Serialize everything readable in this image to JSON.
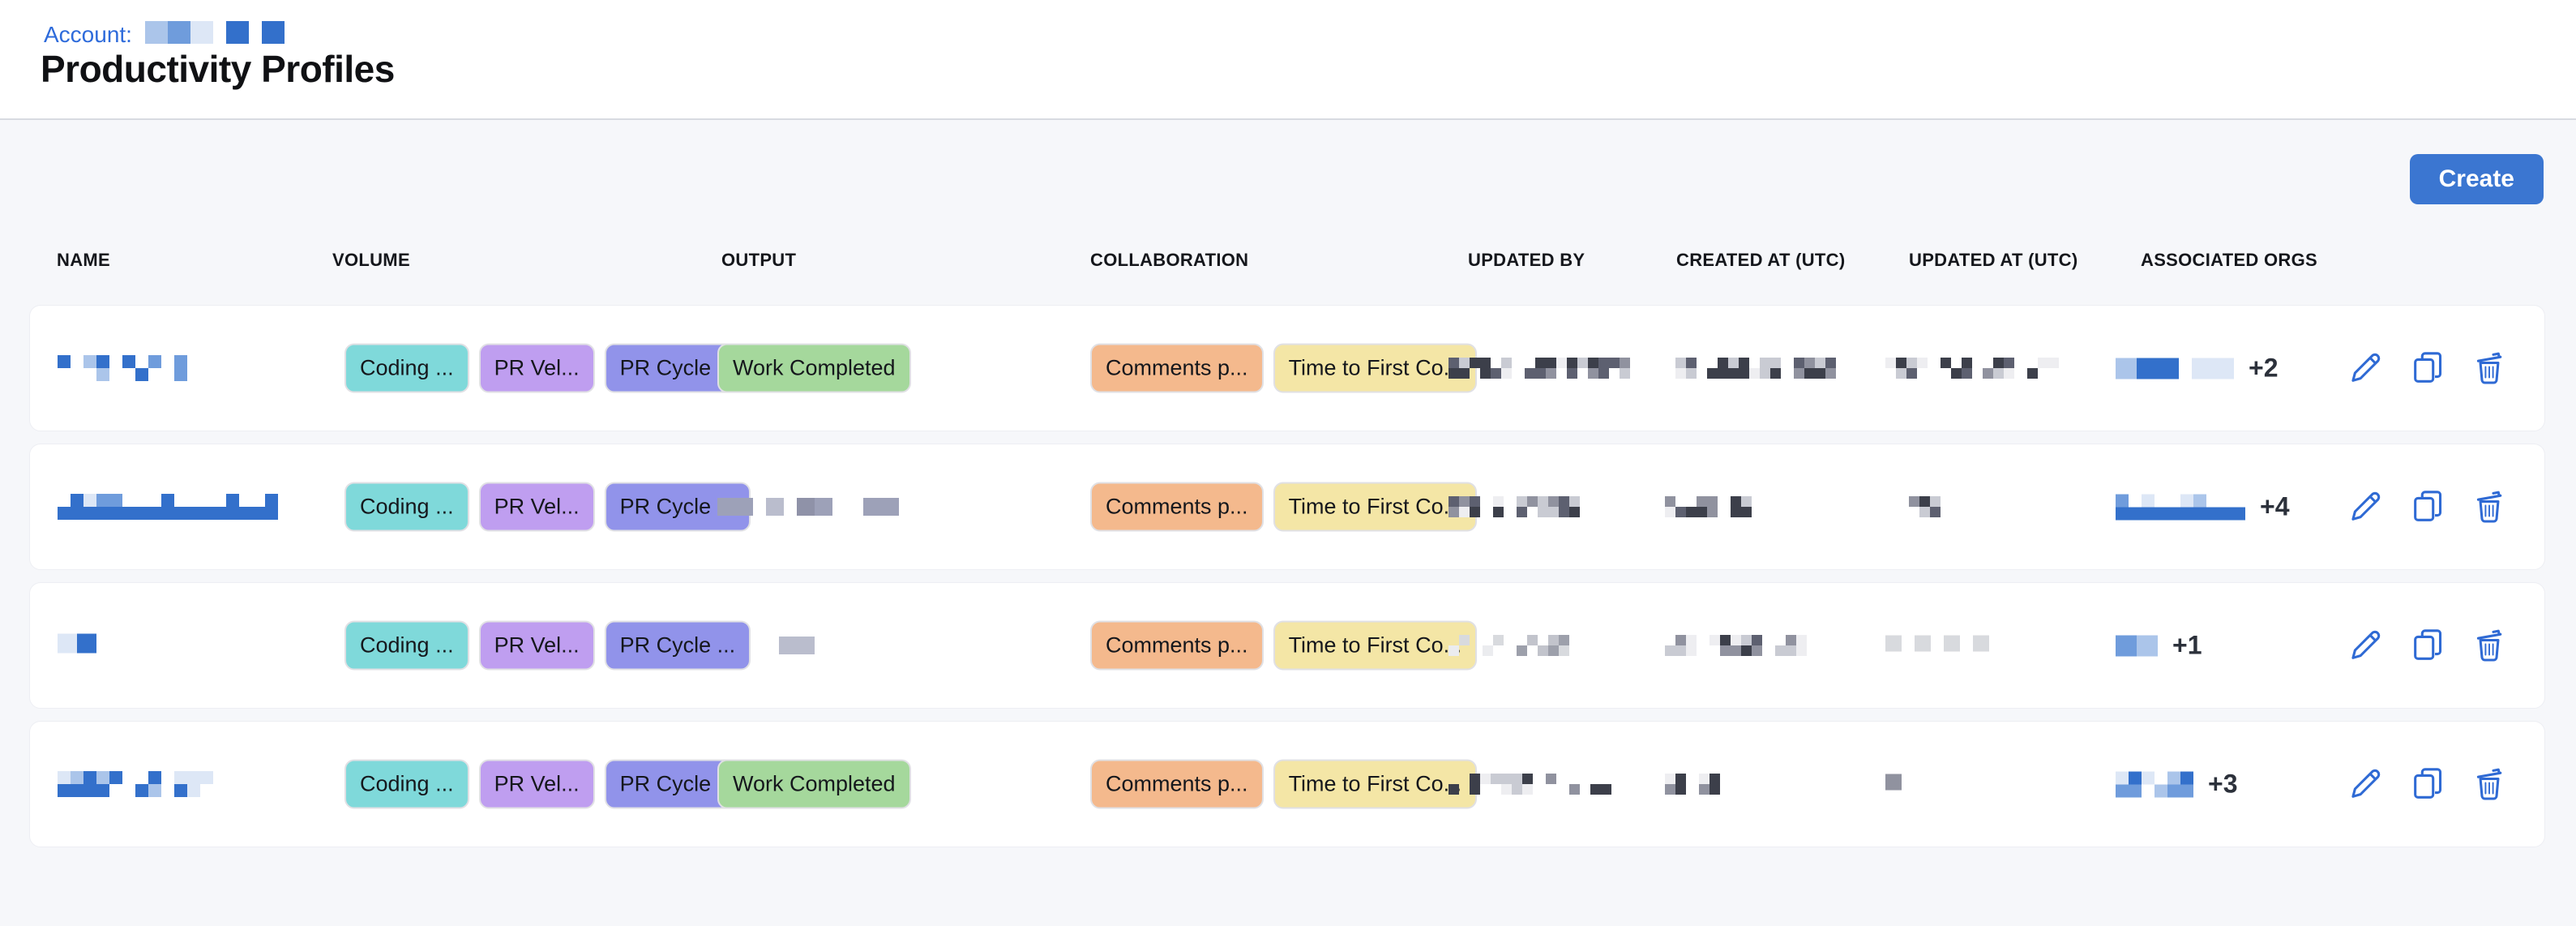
{
  "header": {
    "account_label": "Account:",
    "title": "Productivity Profiles",
    "account_redacted": {
      "segs": [
        78,
        26,
        28
      ],
      "style": "blue",
      "rows": 1,
      "cell": 28,
      "density": 0.95,
      "seed": 5
    }
  },
  "toolbar": {
    "create_label": "Create"
  },
  "colors": {
    "accent_blue": "#3b76d1",
    "icon_blue": "#2f6ad4",
    "link_blue": "#2e6bdb",
    "page_bg": "#f6f7fa",
    "card_bg": "#ffffff"
  },
  "table": {
    "columns": [
      "NAME",
      "VOLUME",
      "OUTPUT",
      "COLLABORATION",
      "UPDATED BY",
      "CREATED AT (UTC)",
      "UPDATED AT (UTC)",
      "ASSOCIATED ORGS"
    ],
    "chip_colors": {
      "Coding ...": "#7fd9da",
      "PR Vel...": "#bf9ef0",
      "PR Cycle ...": "#9193ea",
      "Work Completed": "#a5d89c",
      "Comments p...": "#f4b98d",
      "Time to First Co...": "#f4e6a6"
    },
    "row_actions": [
      "edit",
      "duplicate",
      "delete"
    ],
    "rows": [
      {
        "name": {
          "segs": [
            160
          ],
          "style": "blue",
          "rows": 2,
          "cell": 16,
          "density": 0.42,
          "seed": 11
        },
        "volume": [
          "Coding ...",
          "PR Vel...",
          "PR Cycle ..."
        ],
        "output": {
          "chip": "Work Completed"
        },
        "collaboration": [
          "Comments p...",
          "Time to First Co..."
        ],
        "updated_by": {
          "segs": [
            78,
            125
          ],
          "style": "gray",
          "rows": 2,
          "cell": 13,
          "density": 0.8,
          "seed": 21
        },
        "created_at": {
          "segs": [
            140,
            56
          ],
          "style": "gray",
          "rows": 2,
          "cell": 13,
          "density": 0.8,
          "seed": 22
        },
        "updated_at": {
          "segs": [
            48,
            90,
            34
          ],
          "style": "gray",
          "rows": 2,
          "cell": 13,
          "density": 0.7,
          "seed": 23
        },
        "orgs": {
          "segs": [
            70,
            64
          ],
          "style": "blue",
          "rows": 1,
          "cell": 26,
          "density": 0.95,
          "seed": 24
        },
        "orgs_more": "+2"
      },
      {
        "name": {
          "segs": [
            270
          ],
          "style": "blue",
          "rows": 2,
          "cell": 16,
          "density": 0.5,
          "seed": 31,
          "solid_bottom": true
        },
        "volume": [
          "Coding ...",
          "PR Vel...",
          "PR Cycle ..."
        ],
        "output": {
          "redacted": {
            "segs": [
              48,
              28,
              62,
              38
            ],
            "style": "grayblue",
            "rows": 1,
            "cell": 22,
            "density": 0.9,
            "seed": 32
          }
        },
        "collaboration": [
          "Comments p...",
          "Time to First Co..."
        ],
        "updated_by": {
          "segs": [
            34,
            14,
            78
          ],
          "style": "gray",
          "rows": 2,
          "cell": 13,
          "density": 0.85,
          "seed": 33
        },
        "created_at": {
          "segs": [
            66,
            20
          ],
          "style": "gray",
          "rows": 2,
          "cell": 13,
          "density": 0.9,
          "seed": 34
        },
        "updated_at": {
          "segs": [
            18,
            40,
            16,
            16
          ],
          "style": "gray",
          "rows": 2,
          "cell": 13,
          "density": 0.6,
          "seed": 35
        },
        "orgs": {
          "segs": [
            166
          ],
          "style": "blue",
          "rows": 2,
          "cell": 16,
          "density": 0.55,
          "seed": 36,
          "solid_bottom": true
        },
        "orgs_more": "+4"
      },
      {
        "name": {
          "segs": [
            48
          ],
          "style": "blue",
          "rows": 1,
          "cell": 24,
          "density": 1,
          "seed": 41
        },
        "volume": [
          "Coding ...",
          "PR Vel...",
          "PR Cycle ..."
        ],
        "output": {
          "redacted": {
            "segs": [
              20,
              20,
              45,
              30
            ],
            "style": "grayblue",
            "rows": 1,
            "cell": 22,
            "density": 0.85,
            "seed": 42
          }
        },
        "collaboration": [
          "Comments p...",
          "Time to First Co..."
        ],
        "updated_by": {
          "segs": [
            22,
            30,
            60
          ],
          "style": "lightgray",
          "rows": 2,
          "cell": 13,
          "density": 0.8,
          "seed": 43
        },
        "created_at": {
          "segs": [
            44,
            66,
            38
          ],
          "style": "gray",
          "rows": 2,
          "cell": 13,
          "density": 0.85,
          "seed": 44
        },
        "updated_at": {
          "segs": [
            16,
            16,
            16,
            16
          ],
          "style": "lightgray",
          "rows": 1,
          "cell": 20,
          "density": 1,
          "seed": 45
        },
        "orgs": {
          "segs": [
            60
          ],
          "style": "blue",
          "rows": 1,
          "cell": 26,
          "density": 1,
          "seed": 46
        },
        "orgs_more": "+1"
      },
      {
        "name": {
          "segs": [
            190
          ],
          "style": "blue",
          "rows": 2,
          "cell": 16,
          "density": 0.55,
          "seed": 51
        },
        "volume": [
          "Coding ...",
          "PR Vel...",
          "PR Cycle ..."
        ],
        "output": {
          "chip": "Work Completed"
        },
        "collaboration": [
          "Comments p...",
          "Time to First Co..."
        ],
        "updated_by": {
          "segs": [
            110,
            16,
            66
          ],
          "style": "gray",
          "rows": 2,
          "cell": 13,
          "density": 0.6,
          "seed": 53
        },
        "created_at": {
          "segs": [
            32,
            20
          ],
          "style": "gray",
          "rows": 2,
          "cell": 13,
          "density": 0.9,
          "seed": 54
        },
        "updated_at": {
          "segs": [
            16
          ],
          "style": "gray",
          "rows": 1,
          "cell": 20,
          "density": 1,
          "seed": 55
        },
        "orgs": {
          "segs": [
            100
          ],
          "style": "blue",
          "rows": 2,
          "cell": 16,
          "density": 0.7,
          "seed": 56
        },
        "orgs_more": "+3"
      }
    ]
  }
}
